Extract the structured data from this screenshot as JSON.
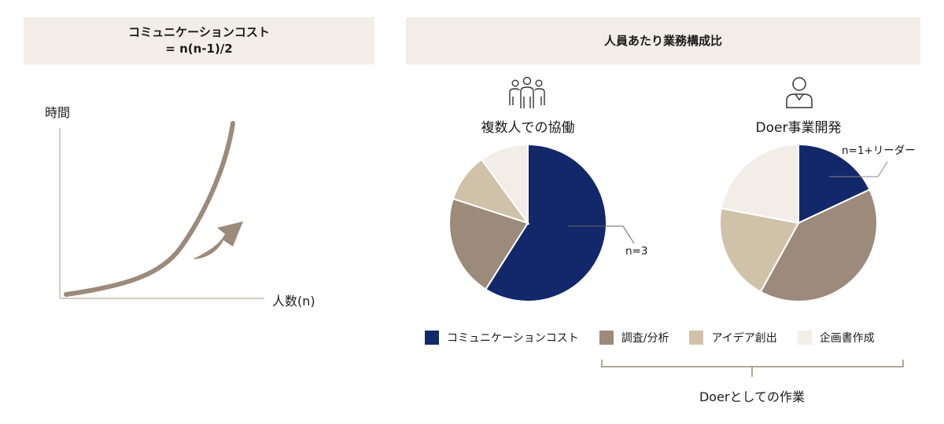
{
  "left_panel": {
    "header_line1": "コミュニケーションコスト",
    "header_line2": "= n(n-1)/2",
    "y_label": "時間",
    "x_label": "人数(n)"
  },
  "right_panel": {
    "header": "人員あたり業務構成比",
    "pie_left_title": "複数人での協働",
    "pie_right_title": "Doer事業開発",
    "callout_left": "n=3",
    "callout_right": "n=1+リーダー",
    "bracket_label": "Doerとしての作業"
  },
  "legend": [
    {
      "label": "コミュニケーションコスト",
      "color": "#13286a"
    },
    {
      "label": "調査/分析",
      "color": "#9c8a7a"
    },
    {
      "label": "アイデア創出",
      "color": "#d0c2a9"
    },
    {
      "label": "企画書作成",
      "color": "#f2ede7"
    }
  ],
  "icons": {
    "group": "people-group-icon",
    "single": "person-icon",
    "arrow": "curved-up-arrow-icon"
  },
  "chart_data": [
    {
      "type": "line",
      "title": "コミュニケーションコスト = n(n-1)/2",
      "xlabel": "人数(n)",
      "ylabel": "時間",
      "trend": "exponential increase"
    },
    {
      "type": "pie",
      "title": "複数人での協働",
      "categories": [
        "コミュニケーションコスト",
        "調査/分析",
        "アイデア創出",
        "企画書作成"
      ],
      "values": [
        59,
        21,
        10,
        10
      ]
    },
    {
      "type": "pie",
      "title": "Doer事業開発",
      "categories": [
        "コミュニケーションコスト",
        "調査/分析",
        "アイデア創出",
        "企画書作成"
      ],
      "values": [
        18,
        40,
        20,
        22
      ]
    }
  ]
}
